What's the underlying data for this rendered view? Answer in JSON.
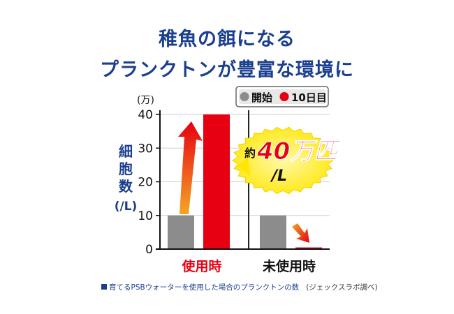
{
  "title_line1": "稚魚の餌になる",
  "title_line2": "プランクトンが豊富な環境に",
  "chart_data": {
    "type": "bar",
    "categories": [
      "使用時",
      "未使用時"
    ],
    "series": [
      {
        "name": "開始",
        "values": [
          10,
          10
        ],
        "color": "#8c8c8c"
      },
      {
        "name": "10日目",
        "values": [
          40,
          0.5
        ],
        "color": "#e60012"
      }
    ],
    "unit": "(万)",
    "ylabel": "細胞数\n(/L)",
    "ylim": [
      0,
      40
    ],
    "yticks": [
      0,
      10,
      20,
      30,
      40
    ],
    "grid": true,
    "legend": "top-right",
    "category_colors": [
      "#e60012",
      "#111111"
    ],
    "annotation": {
      "prefix": "約",
      "value": "40万匹",
      "suffix": "/L"
    }
  },
  "footnote": {
    "text": "育てるPSBウォーターを使用した場合のプランクトンの数",
    "source": "(ジェックスラボ調べ)"
  }
}
